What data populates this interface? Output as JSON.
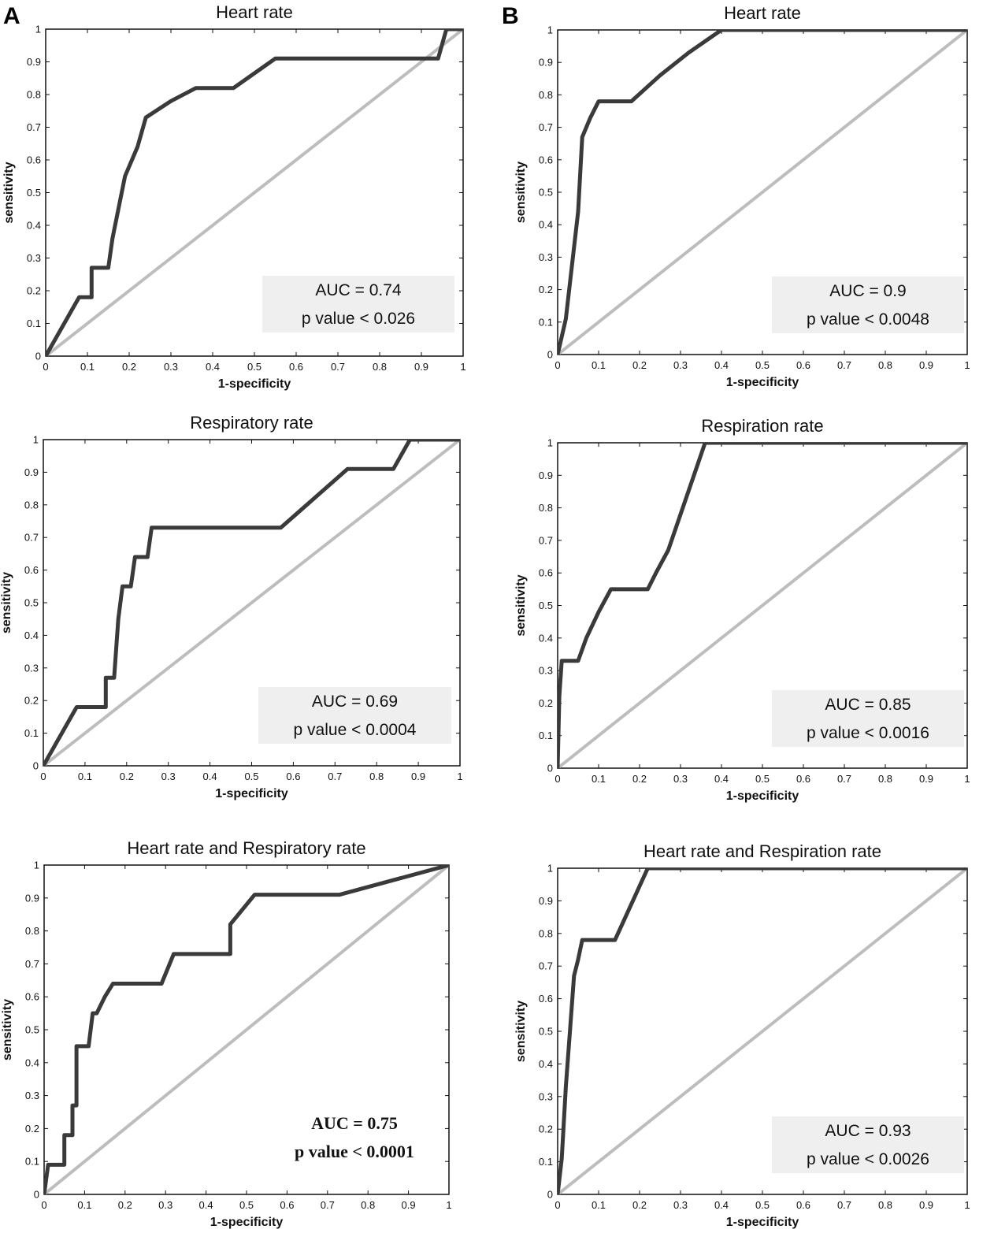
{
  "panel_labels": [
    "A",
    "B"
  ],
  "chart_data": [
    {
      "type": "line",
      "title": "Heart rate",
      "xlabel": "1-specificity",
      "ylabel": "sensitivity",
      "xlim": [
        0,
        1
      ],
      "ylim": [
        0,
        1
      ],
      "xticks": [
        "0",
        "0.1",
        "0.2",
        "0.3",
        "0.4",
        "0.5",
        "0.6",
        "0.7",
        "0.8",
        "0.9",
        "1"
      ],
      "yticks": [
        "0",
        "0.1",
        "0.2",
        "0.3",
        "0.4",
        "0.5",
        "0.6",
        "0.7",
        "0.8",
        "0.9",
        "1"
      ],
      "annotation": [
        "AUC = 0.74",
        "p value < 0.026"
      ],
      "annotation_box": true,
      "series": [
        {
          "role": "roc",
          "color": "#3a3a3a",
          "x": [
            0,
            0.08,
            0.11,
            0.11,
            0.15,
            0.16,
            0.19,
            0.22,
            0.24,
            0.3,
            0.36,
            0.45,
            0.55,
            0.93,
            0.94,
            0.96,
            1
          ],
          "y": [
            0,
            0.18,
            0.18,
            0.27,
            0.27,
            0.36,
            0.55,
            0.64,
            0.73,
            0.78,
            0.82,
            0.82,
            0.91,
            0.91,
            0.91,
            1,
            1
          ]
        },
        {
          "role": "reference",
          "color": "#bdbdbd",
          "x": [
            0,
            1
          ],
          "y": [
            0,
            1
          ]
        }
      ]
    },
    {
      "type": "line",
      "title": "Heart rate",
      "xlabel": "1-specificity",
      "ylabel": "sensitivity",
      "xlim": [
        0,
        1
      ],
      "ylim": [
        0,
        1
      ],
      "xticks": [
        "0",
        "0.1",
        "0.2",
        "0.3",
        "0.4",
        "0.5",
        "0.6",
        "0.7",
        "0.8",
        "0.9",
        "1"
      ],
      "yticks": [
        "0",
        "0.1",
        "0.2",
        "0.3",
        "0.4",
        "0.5",
        "0.6",
        "0.7",
        "0.8",
        "0.9",
        "1"
      ],
      "annotation": [
        "AUC = 0.9",
        "p value < 0.0048"
      ],
      "annotation_box": true,
      "series": [
        {
          "role": "roc",
          "color": "#3a3a3a",
          "x": [
            0,
            0.02,
            0.03,
            0.05,
            0.06,
            0.08,
            0.1,
            0.18,
            0.25,
            0.32,
            0.4,
            1
          ],
          "y": [
            0,
            0.11,
            0.22,
            0.44,
            0.67,
            0.73,
            0.78,
            0.78,
            0.86,
            0.93,
            1,
            1
          ]
        },
        {
          "role": "reference",
          "color": "#bdbdbd",
          "x": [
            0,
            1
          ],
          "y": [
            0,
            1
          ]
        }
      ]
    },
    {
      "type": "line",
      "title": "Respiratory rate",
      "xlabel": "1-specificity",
      "ylabel": "sensitivity",
      "xlim": [
        0,
        1
      ],
      "ylim": [
        0,
        1
      ],
      "xticks": [
        "0",
        "0.1",
        "0.2",
        "0.3",
        "0.4",
        "0.5",
        "0.6",
        "0.7",
        "0.8",
        "0.9",
        "1"
      ],
      "yticks": [
        "0",
        "0.1",
        "0.2",
        "0.3",
        "0.4",
        "0.5",
        "0.6",
        "0.7",
        "0.8",
        "0.9",
        "1"
      ],
      "annotation": [
        "AUC = 0.69",
        "p value < 0.0004"
      ],
      "annotation_box": true,
      "series": [
        {
          "role": "roc",
          "color": "#3a3a3a",
          "x": [
            0,
            0.08,
            0.15,
            0.15,
            0.17,
            0.18,
            0.19,
            0.21,
            0.22,
            0.25,
            0.26,
            0.57,
            0.65,
            0.73,
            0.84,
            0.88,
            1
          ],
          "y": [
            0,
            0.18,
            0.18,
            0.27,
            0.27,
            0.45,
            0.55,
            0.55,
            0.64,
            0.64,
            0.73,
            0.73,
            0.82,
            0.91,
            0.91,
            1,
            1
          ]
        },
        {
          "role": "reference",
          "color": "#bdbdbd",
          "x": [
            0,
            1
          ],
          "y": [
            0,
            1
          ]
        }
      ]
    },
    {
      "type": "line",
      "title": "Respiration rate",
      "xlabel": "1-specificity",
      "ylabel": "sensitivity",
      "xlim": [
        0,
        1
      ],
      "ylim": [
        0,
        1
      ],
      "xticks": [
        "0",
        "0.1",
        "0.2",
        "0.3",
        "0.4",
        "0.5",
        "0.6",
        "0.7",
        "0.8",
        "0.9",
        "1"
      ],
      "yticks": [
        "0",
        "0.1",
        "0.2",
        "0.3",
        "0.4",
        "0.5",
        "0.6",
        "0.7",
        "0.8",
        "0.9",
        "1"
      ],
      "annotation": [
        "AUC = 0.85",
        "p value < 0.0016"
      ],
      "annotation_box": true,
      "series": [
        {
          "role": "roc",
          "color": "#3a3a3a",
          "x": [
            0,
            0.004,
            0.01,
            0.05,
            0.07,
            0.1,
            0.13,
            0.22,
            0.24,
            0.27,
            0.36,
            1
          ],
          "y": [
            0,
            0.22,
            0.33,
            0.33,
            0.4,
            0.48,
            0.55,
            0.55,
            0.6,
            0.67,
            1,
            1
          ]
        },
        {
          "role": "reference",
          "color": "#bdbdbd",
          "x": [
            0,
            1
          ],
          "y": [
            0,
            1
          ]
        }
      ]
    },
    {
      "type": "line",
      "title": "Heart rate and Respiratory rate",
      "xlabel": "1-specificity",
      "ylabel": "sensitivity",
      "xlim": [
        0,
        1
      ],
      "ylim": [
        0,
        1
      ],
      "xticks": [
        "0",
        "0.1",
        "0.2",
        "0.3",
        "0.4",
        "0.5",
        "0.6",
        "0.7",
        "0.8",
        "0.9",
        "1"
      ],
      "yticks": [
        "0",
        "0.1",
        "0.2",
        "0.3",
        "0.4",
        "0.5",
        "0.6",
        "0.7",
        "0.8",
        "0.9",
        "1"
      ],
      "annotation": [
        "AUC = 0.75",
        "p value < 0.0001"
      ],
      "annotation_box": false,
      "series": [
        {
          "role": "roc",
          "color": "#3a3a3a",
          "x": [
            0,
            0.01,
            0.02,
            0.05,
            0.05,
            0.07,
            0.07,
            0.08,
            0.08,
            0.11,
            0.12,
            0.13,
            0.15,
            0.17,
            0.29,
            0.32,
            0.46,
            0.46,
            0.52,
            0.73,
            1
          ],
          "y": [
            0,
            0.09,
            0.09,
            0.09,
            0.18,
            0.18,
            0.27,
            0.27,
            0.45,
            0.45,
            0.55,
            0.55,
            0.6,
            0.64,
            0.64,
            0.73,
            0.73,
            0.82,
            0.91,
            0.91,
            1
          ]
        },
        {
          "role": "reference",
          "color": "#bdbdbd",
          "x": [
            0,
            1
          ],
          "y": [
            0,
            1
          ]
        }
      ]
    },
    {
      "type": "line",
      "title": "Heart rate and Respiration rate",
      "xlabel": "1-specificity",
      "ylabel": "sensitivity",
      "xlim": [
        0,
        1
      ],
      "ylim": [
        0,
        1
      ],
      "xticks": [
        "0",
        "0.1",
        "0.2",
        "0.3",
        "0.4",
        "0.5",
        "0.6",
        "0.7",
        "0.8",
        "0.9",
        "1"
      ],
      "yticks": [
        "0",
        "0.1",
        "0.2",
        "0.3",
        "0.4",
        "0.5",
        "0.6",
        "0.7",
        "0.8",
        "0.9",
        "1"
      ],
      "annotation": [
        "AUC = 0.93",
        "p value < 0.0026"
      ],
      "annotation_box": true,
      "series": [
        {
          "role": "roc",
          "color": "#3a3a3a",
          "x": [
            0,
            0.01,
            0.02,
            0.04,
            0.05,
            0.06,
            0.14,
            0.22,
            1
          ],
          "y": [
            0,
            0.11,
            0.33,
            0.67,
            0.72,
            0.78,
            0.78,
            1,
            1
          ]
        },
        {
          "role": "reference",
          "color": "#bdbdbd",
          "x": [
            0,
            1
          ],
          "y": [
            0,
            1
          ]
        }
      ]
    }
  ]
}
